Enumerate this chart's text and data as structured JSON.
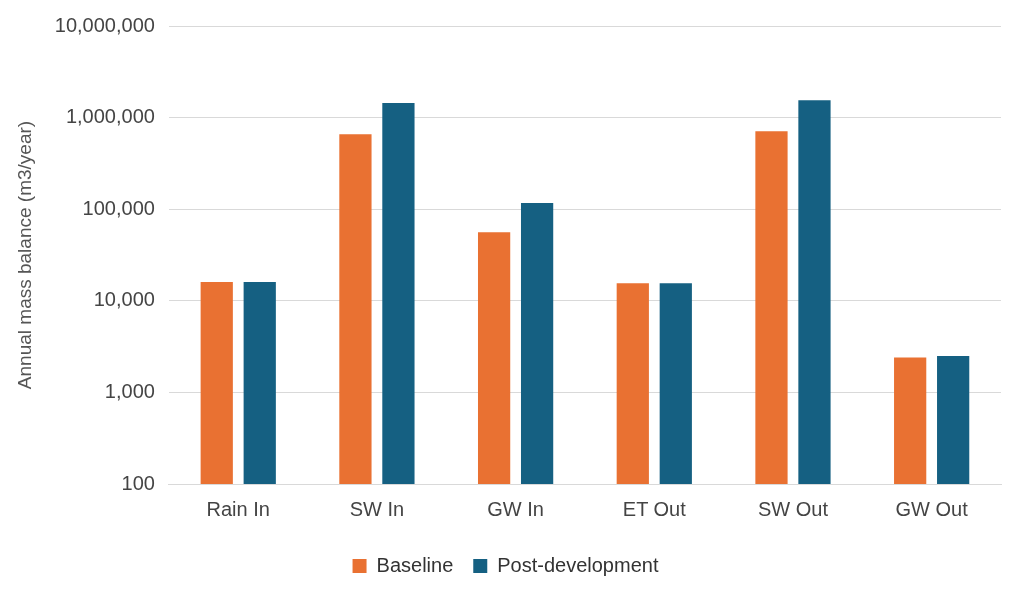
{
  "chart_data": {
    "type": "bar",
    "ylabel": "Annual mass balance (m3/year)",
    "categories": [
      "Rain In",
      "SW In",
      "GW In",
      "ET Out",
      "SW Out",
      "GW Out"
    ],
    "series": [
      {
        "name": "Baseline",
        "color": "#e97132",
        "values": [
          16000,
          660000,
          56000,
          15500,
          710000,
          2400
        ]
      },
      {
        "name": "Post-development",
        "color": "#156082",
        "values": [
          16000,
          1440000,
          117000,
          15500,
          1550000,
          2500
        ]
      }
    ],
    "log": true,
    "ylim": [
      100,
      10000000
    ],
    "yticks": [
      {
        "value": 100,
        "label": "100"
      },
      {
        "value": 1000,
        "label": "1,000"
      },
      {
        "value": 10000,
        "label": "10,000"
      },
      {
        "value": 100000,
        "label": "100,000"
      },
      {
        "value": 1000000,
        "label": "1,000,000"
      },
      {
        "value": 10000000,
        "label": "10,000,000"
      }
    ],
    "grid": "y",
    "legend": "bottom"
  }
}
